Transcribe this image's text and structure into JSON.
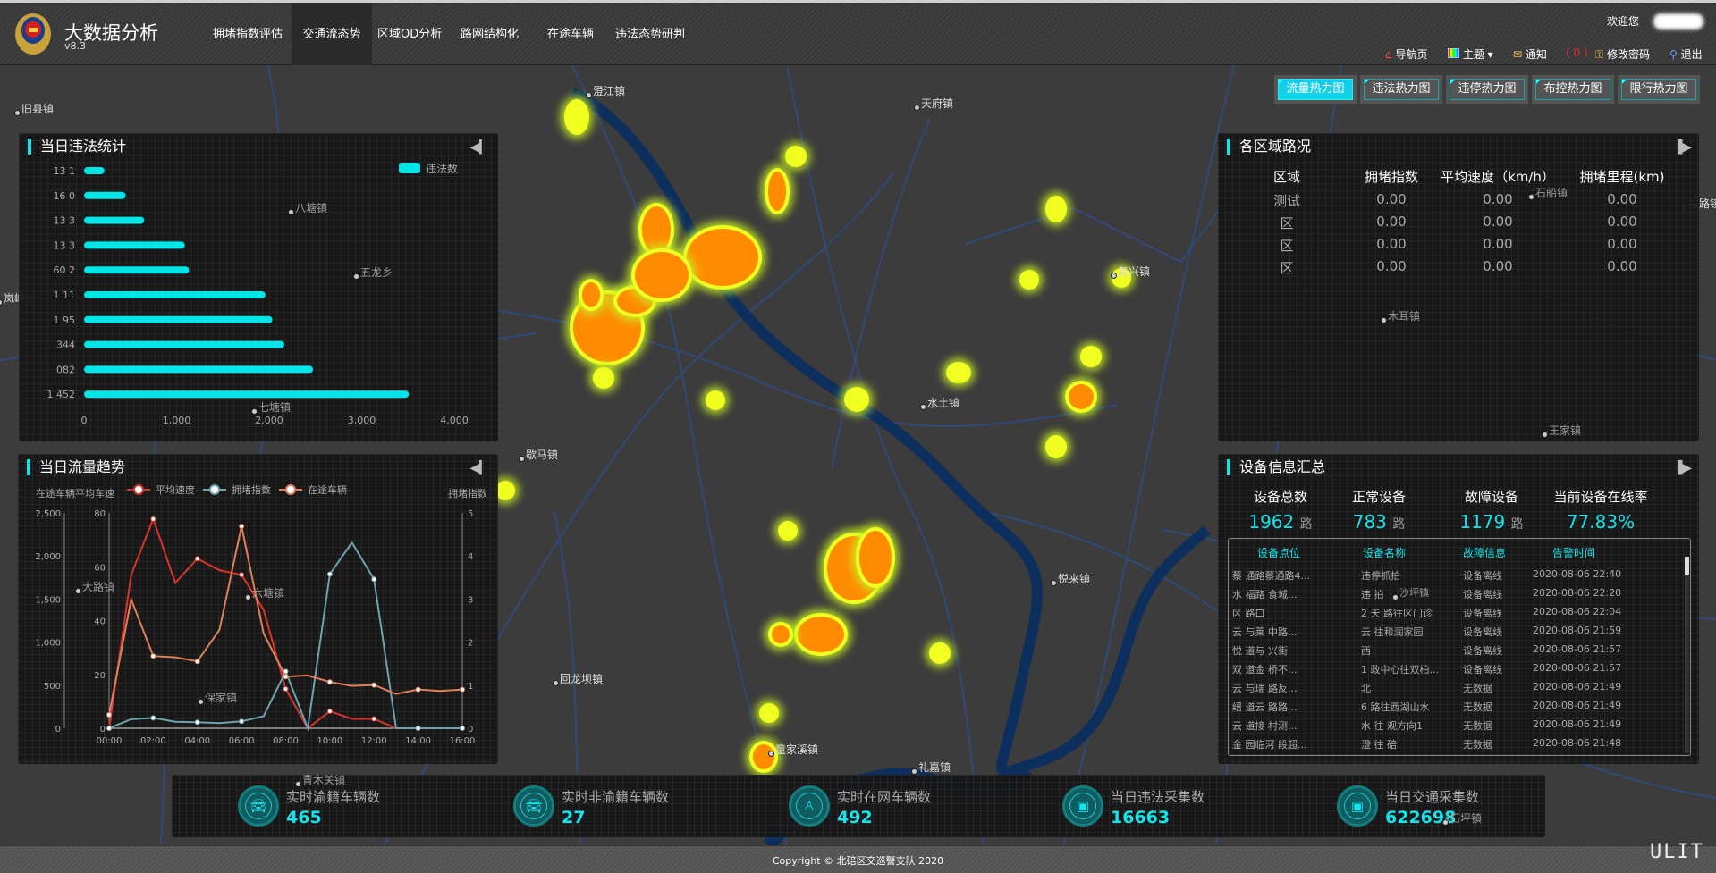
{
  "header": {
    "app_title": "大数据分析",
    "version": "v8.3",
    "nav": [
      "拥堵指数评估",
      "交通流态势",
      "区域OD分析",
      "路网结构化",
      "在途车辆",
      "违法态势研判"
    ],
    "active_nav": "交通流态势",
    "welcome": "欢迎您",
    "links": {
      "home": "导航页",
      "theme": "主题",
      "notify": "通知",
      "notify_count": "( 0 )",
      "password": "修改密码",
      "logout": "退出"
    }
  },
  "heatmap_buttons": [
    "流量热力图",
    "违法热力图",
    "违停热力图",
    "布控热力图",
    "限行热力图"
  ],
  "map_places": [
    "澄江镇",
    "天府镇",
    "旧县镇",
    "八塘镇",
    "五龙乡",
    "岚峰乡",
    "七塘镇",
    "歇马镇",
    "水土镇",
    "复兴镇",
    "悦来镇",
    "回龙坝镇",
    "童家溪镇",
    "礼嘉镇",
    "木耳镇",
    "王家镇",
    "石船镇",
    "古路镇",
    "大路镇",
    "六塘镇",
    "保家镇",
    "沙坪镇",
    "青木关镇",
    "石坪镇"
  ],
  "violation_panel": {
    "title": "当日违法统计",
    "legend": "违法数",
    "chart_data": {
      "type": "bar",
      "orientation": "horizontal",
      "categories": [
        "13  1",
        "16  0",
        "13  3",
        "13  3",
        "60  2",
        "1  11",
        "1  95",
        "344",
        "082",
        "1 452"
      ],
      "series": [
        {
          "name": "违法数",
          "values": [
            220,
            450,
            650,
            1090,
            1135,
            1960,
            2035,
            2165,
            2475,
            3510
          ]
        }
      ],
      "xlim": [
        0,
        4000
      ],
      "xticks": [
        "0",
        "1,000",
        "2,000",
        "3,000",
        "4,000"
      ],
      "color": "#00e5e8"
    }
  },
  "trend_panel": {
    "title": "当日流量趋势",
    "chart_data": {
      "type": "line",
      "x": [
        "00:00",
        "01:00",
        "02:00",
        "03:00",
        "04:00",
        "05:00",
        "06:00",
        "07:00",
        "08:00",
        "09:00",
        "10:00",
        "11:00",
        "12:00",
        "13:00",
        "14:00",
        "15:00",
        "16:00"
      ],
      "xticks": [
        "00:00",
        "02:00",
        "04:00",
        "06:00",
        "08:00",
        "10:00",
        "12:00",
        "14:00",
        "16:00"
      ],
      "left_axis_label": "在途车辆平均车速",
      "right_axis_label": "拥堵指数",
      "axes": {
        "vehicles": {
          "range": [
            0,
            2500
          ],
          "ticks": [
            "0",
            "500",
            "1,000",
            "1,500",
            "2,000",
            "2,500"
          ]
        },
        "speed": {
          "range": [
            0,
            80
          ],
          "ticks": [
            "0",
            "20",
            "40",
            "60",
            "80"
          ]
        },
        "congestion": {
          "range": [
            0,
            5
          ],
          "ticks": [
            "0",
            "1",
            "2",
            "3",
            "4",
            "5"
          ]
        }
      },
      "series": [
        {
          "name": "平均速度",
          "axis": "speed",
          "color": "#d9342b",
          "values": [
            0,
            57,
            77.7,
            54,
            63,
            58.7,
            57,
            44,
            14.6,
            0,
            6.3,
            3.5,
            3.5,
            0,
            0,
            0,
            0
          ]
        },
        {
          "name": "拥堵指数",
          "axis": "congestion",
          "color": "#6fa3b0",
          "values": [
            0,
            0.21,
            0.24,
            0.15,
            0.14,
            0.12,
            0.16,
            0.28,
            1.32,
            0,
            3.58,
            4.31,
            3.46,
            0,
            0,
            0,
            0
          ]
        },
        {
          "name": "在途车辆",
          "axis": "vehicles",
          "color": "#e0805a",
          "values": [
            156,
            1496,
            838,
            824,
            776,
            1143,
            2345,
            1101,
            599,
            613,
            537,
            492,
            502,
            398,
            450,
            433,
            450
          ]
        }
      ]
    }
  },
  "road_panel": {
    "title": "各区域路况",
    "columns": [
      "区域",
      "拥堵指数",
      "平均速度（km/h）",
      "拥堵里程(km)"
    ],
    "rows": [
      [
        "测试",
        "0.00",
        "0.00",
        "0.00"
      ],
      [
        "区",
        "0.00",
        "0.00",
        "0.00"
      ],
      [
        "区",
        "0.00",
        "0.00",
        "0.00"
      ],
      [
        "区",
        "0.00",
        "0.00",
        "0.00"
      ]
    ]
  },
  "device_panel": {
    "title": "设备信息汇总",
    "stats": [
      {
        "label": "设备总数",
        "value": "1962",
        "unit": "路"
      },
      {
        "label": "正常设备",
        "value": "783",
        "unit": "路"
      },
      {
        "label": "故障设备",
        "value": "1179",
        "unit": "路"
      },
      {
        "label": "当前设备在线率",
        "value": "77.83%",
        "unit": ""
      }
    ],
    "columns": [
      "设备点位",
      "设备名称",
      "故障信息",
      "告警时间"
    ],
    "rows": [
      [
        "蔡  通路蔡通路4...",
        "违停抓拍",
        "设备离线",
        "2020-08-06 22:40"
      ],
      [
        "水  福路  食城...",
        "违  拍",
        "设备离线",
        "2020-08-06 22:20"
      ],
      [
        "区  路口",
        "2  天  路往区门诊",
        "设备离线",
        "2020-08-06 22:04"
      ],
      [
        "云  与莱  中路...",
        "云  往和润家园",
        "设备离线",
        "2020-08-06 21:59"
      ],
      [
        "悦  道与  兴街",
        "西",
        "设备离线",
        "2020-08-06 21:57"
      ],
      [
        "双  道金  桥不...",
        "1  政中心往双柏...",
        "设备离线",
        "2020-08-06 21:57"
      ],
      [
        "云  与瑞  路反...",
        "北",
        "无数据",
        "2020-08-06 21:49"
      ],
      [
        "缙  道云  路路...",
        "6  路往西湖山水",
        "无数据",
        "2020-08-06 21:49"
      ],
      [
        "云  道接  村测...",
        "水  往  观方向1",
        "无数据",
        "2020-08-06 21:49"
      ],
      [
        "金  园临河  段超...",
        "澄  往  碚",
        "无数据",
        "2020-08-06 21:48"
      ]
    ]
  },
  "kpis": [
    {
      "label": "实时渝籍车辆数",
      "value": "465",
      "icon": "car-icon"
    },
    {
      "label": "实时非渝籍车辆数",
      "value": "27",
      "icon": "car-icon"
    },
    {
      "label": "实时在网车辆数",
      "value": "492",
      "icon": "driver-icon"
    },
    {
      "label": "当日违法采集数",
      "value": "16663",
      "icon": "id-card-icon"
    },
    {
      "label": "当日交通采集数",
      "value": "622698",
      "icon": "id-card-icon"
    }
  ],
  "footer": {
    "copyright": "Copyright © 北碚区交巡警支队 2020",
    "watermark": "ULIT"
  },
  "colors": {
    "accent": "#12e4ea",
    "heat_core": "#ff8c00",
    "heat_edge": "#e8ff20",
    "road": "#2e4a78",
    "river": "#0d2f5e"
  }
}
